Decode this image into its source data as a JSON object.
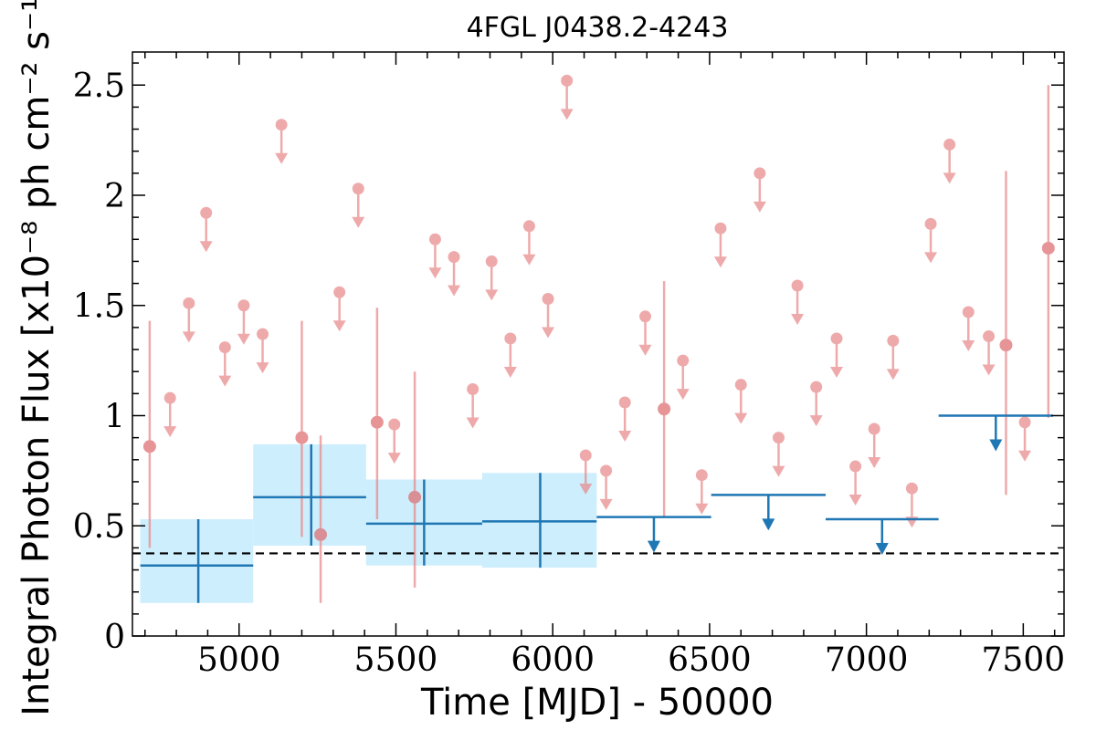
{
  "chart_data": {
    "type": "scatter",
    "title": "4FGL J0438.2-4243",
    "xlabel": "Time [MJD] - 50000",
    "ylabel": "Integral Photon Flux [x10⁻⁸ ph cm⁻² s⁻¹]",
    "xlim": [
      4660,
      7630
    ],
    "ylim": [
      0,
      2.65
    ],
    "xticks": [
      5000,
      5500,
      6000,
      6500,
      7000,
      7500
    ],
    "yticks": [
      0,
      0.5,
      1,
      1.5,
      2,
      2.5
    ],
    "ytick_labels": [
      "0",
      "0.5",
      "1",
      "1.5",
      "2",
      "2.5"
    ],
    "reference_line": 0.375,
    "colors": {
      "fine_bins": "#e88a8c",
      "coarse_bins": "#1f77b4",
      "coarse_band": "#cdeefc",
      "reference": "#000000"
    },
    "series": [
      {
        "type": "upper_limits",
        "x": [
          4780,
          4840,
          4895,
          4955,
          5015,
          5075,
          5135,
          5320,
          5380,
          5495,
          5625,
          5685,
          5745,
          5805,
          5865,
          5925,
          5985,
          6045,
          6105,
          6170,
          6230,
          6295,
          6415,
          6475,
          6535,
          6600,
          6660,
          6720,
          6780,
          6840,
          6905,
          6965,
          7025,
          7085,
          7145,
          7205,
          7265,
          7325,
          7390,
          7505
        ],
        "y": [
          1.08,
          1.51,
          1.92,
          1.31,
          1.5,
          1.37,
          2.32,
          1.56,
          2.03,
          0.96,
          1.8,
          1.72,
          1.12,
          1.7,
          1.35,
          1.86,
          1.53,
          2.52,
          0.82,
          0.75,
          1.06,
          1.45,
          1.25,
          0.73,
          1.85,
          1.14,
          2.1,
          0.9,
          1.59,
          1.13,
          1.35,
          0.77,
          0.94,
          1.34,
          0.67,
          1.87,
          2.23,
          1.47,
          1.36,
          0.97
        ]
      },
      {
        "type": "detections",
        "x": [
          4715,
          5200,
          5260,
          5440,
          5560,
          6355,
          7445,
          7580
        ],
        "y": [
          0.86,
          0.9,
          0.46,
          0.97,
          0.63,
          1.03,
          1.32,
          1.76
        ],
        "y_low": [
          0.4,
          0.45,
          0.15,
          0.53,
          0.22,
          0.54,
          0.64,
          0.99
        ],
        "y_high": [
          1.43,
          1.43,
          0.91,
          1.49,
          1.2,
          1.61,
          2.11,
          2.5
        ]
      },
      {
        "type": "coarse_detections",
        "x": [
          4870,
          5230,
          5590,
          5960
        ],
        "x_low": [
          4685,
          5045,
          5405,
          5775
        ],
        "x_high": [
          5045,
          5405,
          5775,
          6140
        ],
        "y": [
          0.32,
          0.63,
          0.51,
          0.52
        ],
        "y_low": [
          0.15,
          0.41,
          0.32,
          0.31
        ],
        "y_high": [
          0.53,
          0.87,
          0.71,
          0.74
        ]
      },
      {
        "type": "coarse_upper_limits",
        "x_low": [
          6140,
          6505,
          6870,
          7230
        ],
        "x_high": [
          6505,
          6870,
          7230,
          7595
        ],
        "y": [
          0.54,
          0.64,
          0.53,
          1.0
        ]
      }
    ]
  }
}
